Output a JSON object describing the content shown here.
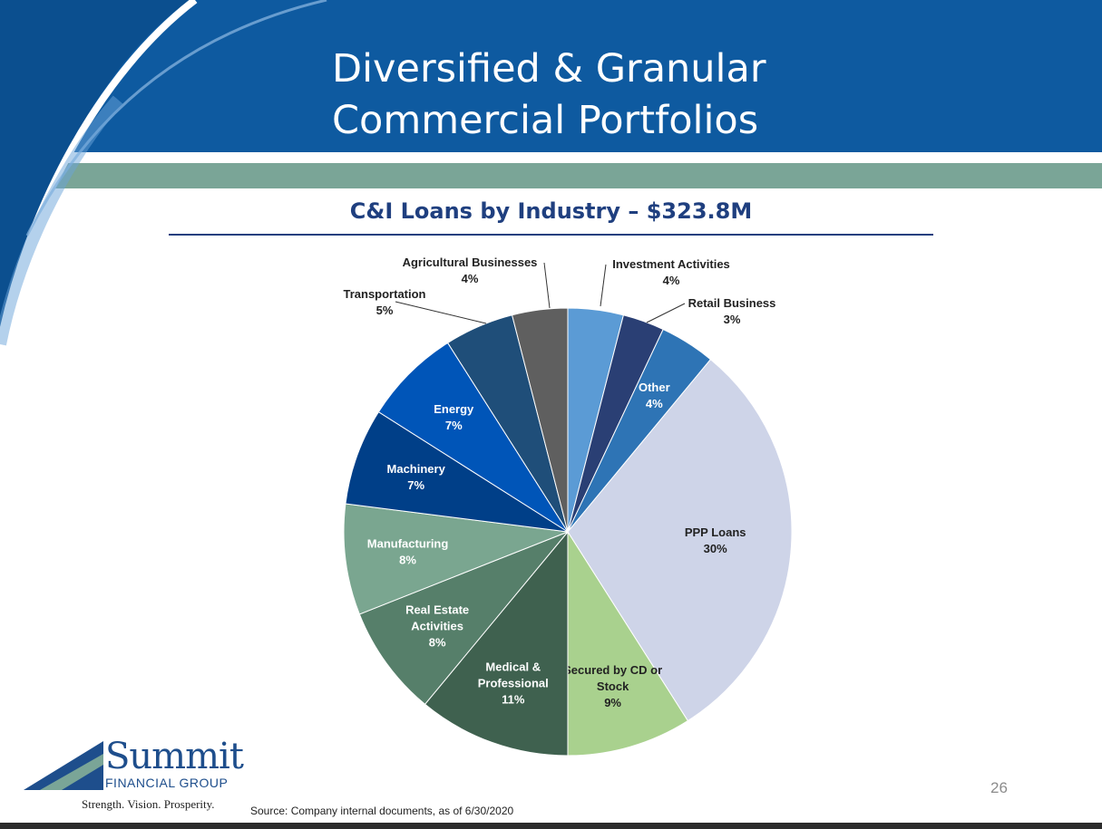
{
  "slide": {
    "title_line1": "Diversified & Granular",
    "title_line2": "Commercial Portfolios",
    "page_number": "26",
    "source": "Source: Company internal documents, as of 6/30/2020"
  },
  "logo": {
    "name": "Summit",
    "subtitle": "FINANCIAL GROUP",
    "tagline": "Strength. Vision. Prosperity."
  },
  "colors": {
    "header_blue": "#0e5aa0",
    "band_green": "#7aa597",
    "title_navy": "#1f3f7f"
  },
  "chart_data": {
    "type": "pie",
    "title": "C&I Loans by Industry – $323.8M",
    "unit": "%",
    "start_at": "12 o'clock",
    "direction": "clockwise",
    "slices": [
      {
        "label": "Investment Activities",
        "label_lines": [
          "Investment Activities"
        ],
        "value": 4,
        "color": "#5b9bd5",
        "label_position": "outside"
      },
      {
        "label": "Retail Business",
        "label_lines": [
          "Retail Business"
        ],
        "value": 3,
        "color": "#2a3f74",
        "label_position": "outside"
      },
      {
        "label": "Other",
        "label_lines": [
          "Other"
        ],
        "value": 4,
        "color": "#2e74b5",
        "label_position": "inside"
      },
      {
        "label": "PPP Loans",
        "label_lines": [
          "PPP Loans"
        ],
        "value": 30,
        "color": "#ced4e8",
        "label_position": "inside"
      },
      {
        "label": "Secured by CD or Stock",
        "label_lines": [
          "Secured by CD or",
          "Stock"
        ],
        "value": 9,
        "color": "#a9d18e",
        "label_position": "inside"
      },
      {
        "label": "Medical & Professional",
        "label_lines": [
          "Medical &",
          "Professional"
        ],
        "value": 11,
        "color": "#3f614f",
        "label_position": "inside"
      },
      {
        "label": "Real Estate Activities",
        "label_lines": [
          "Real Estate",
          "Activities"
        ],
        "value": 8,
        "color": "#567f6a",
        "label_position": "inside"
      },
      {
        "label": "Manufacturing",
        "label_lines": [
          "Manufacturing"
        ],
        "value": 8,
        "color": "#7aa690",
        "label_position": "inside"
      },
      {
        "label": "Machinery",
        "label_lines": [
          "Machinery"
        ],
        "value": 7,
        "color": "#003f88",
        "label_position": "inside"
      },
      {
        "label": "Energy",
        "label_lines": [
          "Energy"
        ],
        "value": 7,
        "color": "#0055b8",
        "label_position": "inside"
      },
      {
        "label": "Transportation",
        "label_lines": [
          "Transportation"
        ],
        "value": 5,
        "color": "#1f4e79",
        "label_position": "outside"
      },
      {
        "label": "Agricultural Businesses",
        "label_lines": [
          "Agricultural Businesses"
        ],
        "value": 4,
        "color": "#5f5f5f",
        "label_position": "outside"
      }
    ]
  }
}
